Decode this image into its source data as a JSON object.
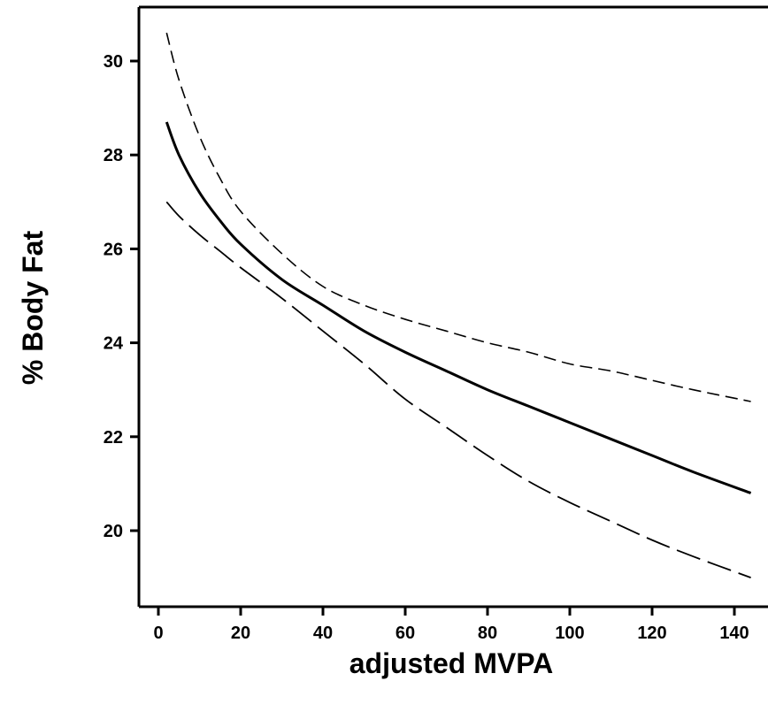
{
  "chart_data": {
    "type": "line",
    "title": "",
    "xlabel": "adjusted MVPA",
    "ylabel": "% Body Fat",
    "xlim": [
      -2,
      146
    ],
    "ylim": [
      18.4,
      31.2
    ],
    "x_ticks": [
      0,
      20,
      40,
      60,
      80,
      100,
      120,
      140
    ],
    "y_ticks": [
      20,
      22,
      24,
      26,
      28,
      30
    ],
    "grid": false,
    "legend": "none",
    "series": [
      {
        "style": "solid",
        "color": "#000000",
        "points": [
          [
            2,
            28.7
          ],
          [
            5,
            28.0
          ],
          [
            10,
            27.2
          ],
          [
            15,
            26.6
          ],
          [
            20,
            26.1
          ],
          [
            30,
            25.35
          ],
          [
            40,
            24.8
          ],
          [
            50,
            24.25
          ],
          [
            60,
            23.8
          ],
          [
            70,
            23.4
          ],
          [
            80,
            23.0
          ],
          [
            90,
            22.65
          ],
          [
            100,
            22.3
          ],
          [
            110,
            21.95
          ],
          [
            120,
            21.6
          ],
          [
            130,
            21.25
          ],
          [
            144,
            20.8
          ]
        ]
      },
      {
        "style": "dashed-short",
        "color": "#000000",
        "points": [
          [
            2,
            30.6
          ],
          [
            5,
            29.6
          ],
          [
            10,
            28.4
          ],
          [
            15,
            27.5
          ],
          [
            20,
            26.8
          ],
          [
            30,
            25.9
          ],
          [
            40,
            25.2
          ],
          [
            50,
            24.8
          ],
          [
            60,
            24.5
          ],
          [
            70,
            24.25
          ],
          [
            80,
            24.0
          ],
          [
            90,
            23.8
          ],
          [
            100,
            23.55
          ],
          [
            110,
            23.4
          ],
          [
            120,
            23.2
          ],
          [
            130,
            23.0
          ],
          [
            144,
            22.75
          ]
        ]
      },
      {
        "style": "dashed-long",
        "color": "#000000",
        "points": [
          [
            2,
            27.0
          ],
          [
            5,
            26.7
          ],
          [
            10,
            26.3
          ],
          [
            15,
            25.95
          ],
          [
            20,
            25.6
          ],
          [
            30,
            24.95
          ],
          [
            40,
            24.25
          ],
          [
            50,
            23.55
          ],
          [
            60,
            22.8
          ],
          [
            70,
            22.2
          ],
          [
            80,
            21.6
          ],
          [
            90,
            21.05
          ],
          [
            100,
            20.6
          ],
          [
            110,
            20.2
          ],
          [
            120,
            19.8
          ],
          [
            130,
            19.45
          ],
          [
            144,
            19.0
          ]
        ]
      }
    ]
  }
}
